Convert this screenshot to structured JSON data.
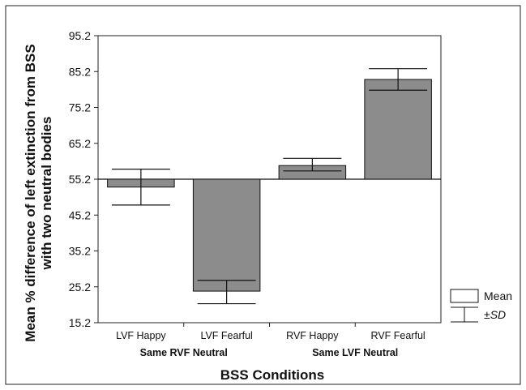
{
  "chart_data": {
    "type": "bar",
    "baseline": 55.2,
    "categories": [
      "LVF Happy",
      "LVF Fearful",
      "RVF Happy",
      "RVF Fearful"
    ],
    "groups": [
      {
        "label": "Same RVF Neutral",
        "categories": [
          "LVF Happy",
          "LVF Fearful"
        ]
      },
      {
        "label": "Same LVF Neutral",
        "categories": [
          "RVF Happy",
          "RVF Fearful"
        ]
      }
    ],
    "series": [
      {
        "values": [
          53.0,
          24.0,
          59.0,
          83.0
        ],
        "sd_low": [
          48.0,
          20.5,
          57.5,
          80.0
        ],
        "sd_high": [
          58.0,
          27.0,
          61.0,
          86.0
        ]
      }
    ],
    "ylim": [
      15.2,
      95.2
    ],
    "yticks": [
      "15.2",
      "25.2",
      "35.2",
      "45.2",
      "55.2",
      "65.2",
      "75.2",
      "85.2",
      "95.2"
    ],
    "ylabel_line1": "Mean % difference of left extinction from BSS",
    "ylabel_line2": "with two neutral bodies",
    "xlabel": "BSS Conditions",
    "legend": {
      "mean_label": "Mean",
      "sd_prefix": "±",
      "sd_label": "SD"
    },
    "colors": {
      "bar": "#8c8c8c",
      "line": "#111111",
      "frame": "#222222"
    }
  }
}
